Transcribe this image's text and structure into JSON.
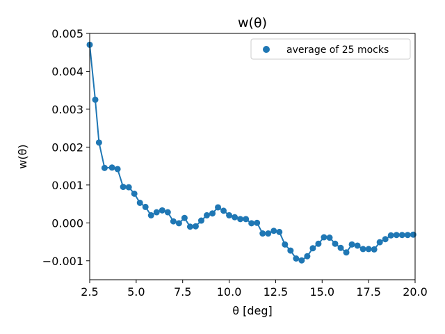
{
  "chart_data": {
    "type": "scatter",
    "title": "w(θ)",
    "xlabel": "θ [deg]",
    "ylabel": "w(θ)",
    "xlim": [
      2.5,
      20.0
    ],
    "ylim": [
      -0.0015,
      0.005
    ],
    "xticks": [
      2.5,
      5.0,
      7.5,
      10.0,
      12.5,
      15.0,
      17.5,
      20.0
    ],
    "xtick_labels": [
      "2.5",
      "5.0",
      "7.5",
      "10.0",
      "12.5",
      "15.0",
      "17.5",
      "20.0"
    ],
    "yticks": [
      -0.001,
      0.0,
      0.001,
      0.002,
      0.003,
      0.004,
      0.005
    ],
    "ytick_labels": [
      "−0.001",
      "0.000",
      "0.001",
      "0.002",
      "0.003",
      "0.004",
      "0.005"
    ],
    "grid": false,
    "legend_position": "top-right",
    "color": "#1f77b4",
    "series": [
      {
        "name": "average of 25 mocks",
        "x": [
          2.5,
          2.8,
          3.0,
          3.3,
          3.7,
          4.0,
          4.3,
          4.6,
          4.9,
          5.2,
          5.5,
          5.8,
          6.1,
          6.4,
          6.7,
          7.0,
          7.3,
          7.6,
          7.9,
          8.2,
          8.5,
          8.8,
          9.1,
          9.4,
          9.7,
          10.0,
          10.3,
          10.6,
          10.9,
          11.2,
          11.5,
          11.8,
          12.1,
          12.4,
          12.7,
          13.0,
          13.3,
          13.6,
          13.9,
          14.2,
          14.5,
          14.8,
          15.1,
          15.4,
          15.7,
          16.0,
          16.3,
          16.6,
          16.9,
          17.2,
          17.5,
          17.8,
          18.1,
          18.4,
          18.7,
          19.0,
          19.3,
          19.6,
          19.9
        ],
        "y": [
          0.0047,
          0.00325,
          0.00212,
          0.00145,
          0.00146,
          0.00142,
          0.00095,
          0.00094,
          0.00077,
          0.00053,
          0.00042,
          0.0002,
          0.00028,
          0.00033,
          0.00028,
          4e-05,
          -1e-05,
          0.00013,
          -0.0001,
          -9e-05,
          6e-05,
          0.0002,
          0.00025,
          0.00041,
          0.00032,
          0.0002,
          0.00015,
          0.0001,
          0.0001,
          -1e-05,
          0.0,
          -0.00028,
          -0.00028,
          -0.00021,
          -0.00024,
          -0.00057,
          -0.00073,
          -0.00094,
          -0.00099,
          -0.00088,
          -0.00067,
          -0.00055,
          -0.00038,
          -0.00039,
          -0.00055,
          -0.00066,
          -0.00078,
          -0.00057,
          -0.0006,
          -0.00069,
          -0.00069,
          -0.0007,
          -0.00051,
          -0.00043,
          -0.00033,
          -0.00032,
          -0.00032,
          -0.00032,
          -0.00031
        ]
      }
    ]
  }
}
